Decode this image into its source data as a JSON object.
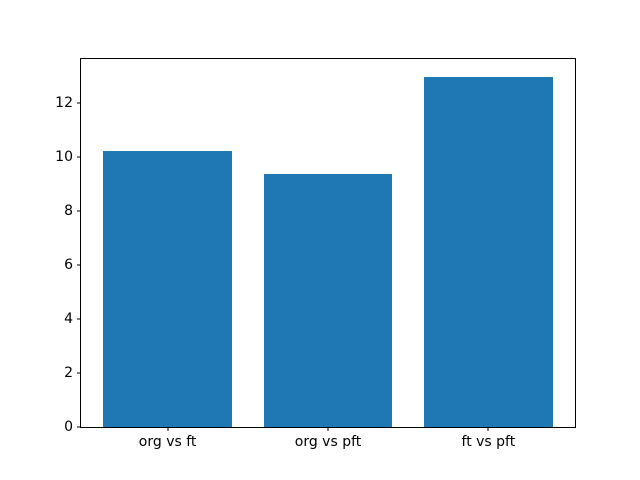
{
  "figure": {
    "background": "#ffffff",
    "text_color": "#000000",
    "spine_color": "#000000"
  },
  "chart_data": {
    "type": "bar",
    "categories": [
      "org vs ft",
      "org vs pft",
      "ft vs pft"
    ],
    "values": [
      10.25,
      9.37,
      13.0
    ],
    "title": "",
    "xlabel": "",
    "ylabel": "",
    "bar_color": "#1f77b4",
    "bar_width": 0.8,
    "bar_centers": [
      0,
      1,
      2
    ],
    "xlim": [
      -0.54,
      2.54
    ],
    "ylim": [
      0,
      13.65
    ],
    "yticks": [
      0,
      2,
      4,
      6,
      8,
      10,
      12
    ],
    "grid": false,
    "legend": null
  }
}
